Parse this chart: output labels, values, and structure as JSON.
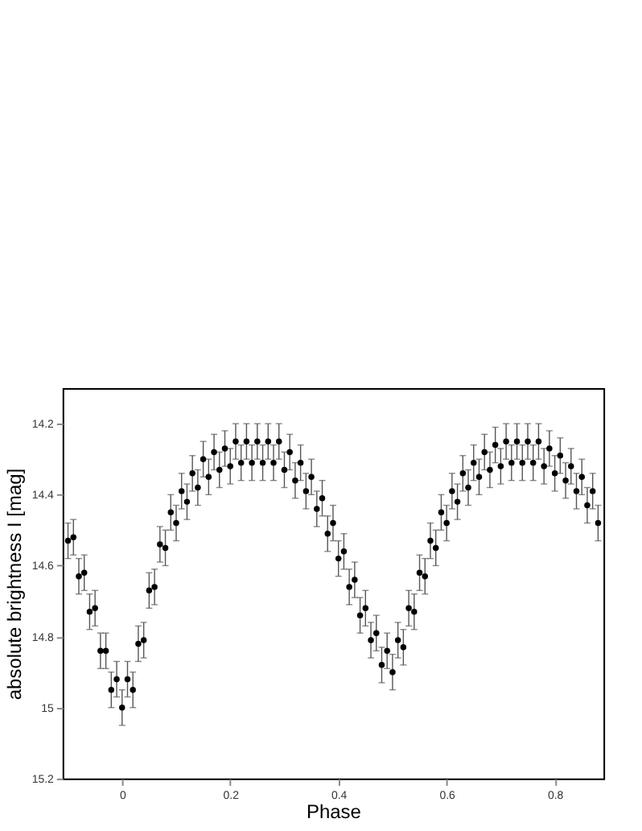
{
  "chart_data": {
    "type": "scatter",
    "xlabel": "Phase",
    "ylabel": "absolute brightness I  [mag]",
    "x": [
      -0.1,
      -0.09,
      -0.08,
      -0.07,
      -0.06,
      -0.05,
      -0.04,
      -0.03,
      -0.02,
      -0.01,
      0.0,
      0.01,
      0.02,
      0.03,
      0.04,
      0.05,
      0.06,
      0.07,
      0.08,
      0.09,
      0.1,
      0.11,
      0.12,
      0.13,
      0.14,
      0.15,
      0.16,
      0.17,
      0.18,
      0.19,
      0.2,
      0.21,
      0.22,
      0.23,
      0.24,
      0.25,
      0.26,
      0.27,
      0.28,
      0.29,
      0.3,
      0.31,
      0.32,
      0.33,
      0.34,
      0.35,
      0.36,
      0.37,
      0.38,
      0.39,
      0.4,
      0.41,
      0.42,
      0.43,
      0.44,
      0.45,
      0.46,
      0.47,
      0.48,
      0.49,
      0.5,
      0.51,
      0.52,
      0.53,
      0.54,
      0.55,
      0.56,
      0.57,
      0.58,
      0.59,
      0.6,
      0.61,
      0.62,
      0.63,
      0.64,
      0.65,
      0.66,
      0.67,
      0.68,
      0.69,
      0.7,
      0.71,
      0.72,
      0.73,
      0.74,
      0.75,
      0.76,
      0.77,
      0.78,
      0.79,
      0.8,
      0.81,
      0.82,
      0.83,
      0.84,
      0.85,
      0.86,
      0.87,
      0.88
    ],
    "series": [
      {
        "color": "#000000",
        "marker": "circle",
        "values": [
          14.53,
          14.52,
          14.63,
          14.62,
          14.73,
          14.72,
          14.84,
          14.84,
          14.95,
          14.92,
          15.0,
          14.92,
          14.95,
          14.82,
          14.81,
          14.67,
          14.66,
          14.54,
          14.55,
          14.45,
          14.48,
          14.39,
          14.42,
          14.34,
          14.38,
          14.3,
          14.35,
          14.28,
          14.33,
          14.27,
          14.32,
          14.25,
          14.31,
          14.25,
          14.31,
          14.25,
          14.31,
          14.25,
          14.31,
          14.25,
          14.33,
          14.28,
          14.36,
          14.31,
          14.39,
          14.35,
          14.44,
          14.41,
          14.51,
          14.48,
          14.58,
          14.56,
          14.66,
          14.64,
          14.74,
          14.72,
          14.81,
          14.79,
          14.88,
          14.84,
          14.9,
          14.81,
          14.83,
          14.72,
          14.73,
          14.62,
          14.63,
          14.53,
          14.55,
          14.45,
          14.48,
          14.39,
          14.42,
          14.34,
          14.38,
          14.31,
          14.35,
          14.28,
          14.33,
          14.26,
          14.32,
          14.25,
          14.31,
          14.25,
          14.31,
          14.25,
          14.31,
          14.25,
          14.32,
          14.27,
          14.34,
          14.29,
          14.36,
          14.32,
          14.39,
          14.35,
          14.43,
          14.39,
          14.48
        ],
        "errors": [
          0.05,
          0.05,
          0.05,
          0.05,
          0.05,
          0.05,
          0.05,
          0.05,
          0.05,
          0.05,
          0.05,
          0.05,
          0.05,
          0.05,
          0.05,
          0.05,
          0.05,
          0.05,
          0.05,
          0.05,
          0.05,
          0.05,
          0.05,
          0.05,
          0.05,
          0.05,
          0.05,
          0.05,
          0.05,
          0.05,
          0.05,
          0.05,
          0.05,
          0.05,
          0.05,
          0.05,
          0.05,
          0.05,
          0.05,
          0.05,
          0.05,
          0.05,
          0.05,
          0.05,
          0.05,
          0.05,
          0.05,
          0.05,
          0.05,
          0.05,
          0.05,
          0.05,
          0.05,
          0.05,
          0.05,
          0.05,
          0.05,
          0.05,
          0.05,
          0.05,
          0.05,
          0.05,
          0.05,
          0.05,
          0.05,
          0.05,
          0.05,
          0.05,
          0.05,
          0.05,
          0.05,
          0.05,
          0.05,
          0.05,
          0.05,
          0.05,
          0.05,
          0.05,
          0.05,
          0.05,
          0.05,
          0.05,
          0.05,
          0.05,
          0.05,
          0.05,
          0.05,
          0.05,
          0.05,
          0.05,
          0.05,
          0.05,
          0.05,
          0.05,
          0.05,
          0.05,
          0.05,
          0.05,
          0.05
        ]
      }
    ],
    "xlim": [
      -0.11,
      0.89
    ],
    "ylim": [
      15.2,
      14.1
    ],
    "xticks": [
      0,
      0.2,
      0.4,
      0.6,
      0.8
    ],
    "yticks": [
      14.2,
      14.4,
      14.6,
      14.8,
      15,
      15.2
    ]
  }
}
